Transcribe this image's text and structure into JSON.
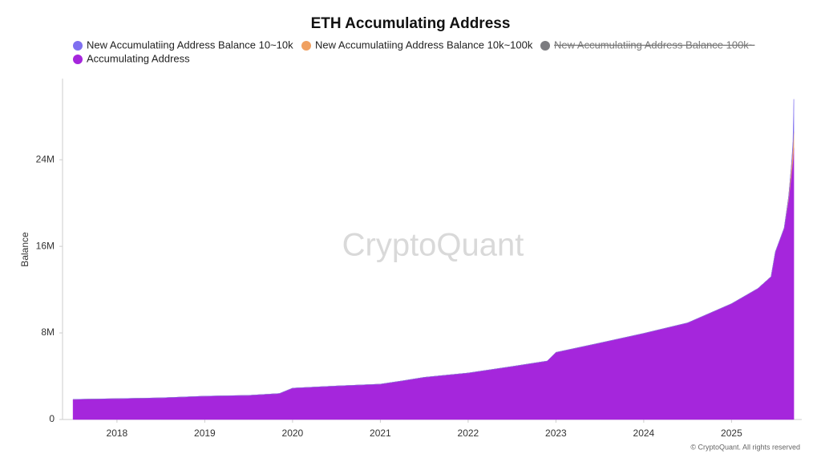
{
  "chart_data": {
    "type": "stacked_area",
    "title": "ETH Accumulating Address",
    "y_label": "Balance",
    "watermark": "CryptoQuant",
    "copyright": "© CryptoQuant. All rights reserved",
    "x": [
      2017.5,
      2018.0,
      2018.5,
      2019.0,
      2019.5,
      2019.85,
      2020.0,
      2020.5,
      2021.0,
      2021.25,
      2021.5,
      2022.0,
      2022.5,
      2022.9,
      2023.0,
      2023.5,
      2024.0,
      2024.5,
      2025.0,
      2025.3,
      2025.45,
      2025.5,
      2025.6,
      2025.65,
      2025.68,
      2025.7,
      2025.71
    ],
    "xlim": [
      2017.38,
      2025.8
    ],
    "xticks": [
      2018,
      2019,
      2020,
      2021,
      2022,
      2023,
      2024,
      2025
    ],
    "ylim": [
      0,
      31500000
    ],
    "yticks": [
      0,
      {
        "value": 8000000,
        "label": "8M"
      },
      {
        "value": 16000000,
        "label": "16M"
      },
      {
        "value": 24000000,
        "label": "24M"
      }
    ],
    "series": [
      {
        "name": "New Accumulatiing Address Balance 10~10k",
        "color": "#7f6ff0",
        "hidden": false,
        "values": [
          0,
          0,
          0,
          0,
          0,
          0,
          0,
          0,
          0,
          0,
          0,
          0,
          0,
          0,
          0,
          0,
          0,
          0,
          0,
          0,
          0,
          0,
          0,
          0,
          0,
          500000,
          3000000
        ]
      },
      {
        "name": "New Accumulatiing Address Balance 10k~100k",
        "color": "#f0a060",
        "hidden": false,
        "values": [
          0,
          0,
          0,
          0,
          0,
          0,
          0,
          0,
          0,
          0,
          0,
          0,
          0,
          0,
          0,
          0,
          0,
          0,
          0,
          0,
          0,
          0,
          0,
          300000,
          800000,
          1200000,
          1500000
        ]
      },
      {
        "name": "New Accumulatiing Address Balance 100k~",
        "color": "#6e6e72",
        "hidden": true,
        "values": [
          0,
          0,
          0,
          0,
          0,
          0,
          0,
          0,
          0,
          0,
          0,
          0,
          0,
          0,
          0,
          0,
          0,
          0,
          0,
          0,
          0,
          0,
          0,
          0,
          0,
          0,
          0
        ]
      },
      {
        "name": "Accumulating Address",
        "color": "#a526dc",
        "hidden": false,
        "values": [
          1860000,
          1930000,
          2000000,
          2160000,
          2230000,
          2400000,
          2900000,
          3100000,
          3270000,
          3570000,
          3900000,
          4300000,
          4900000,
          5400000,
          6200000,
          7070000,
          7960000,
          8930000,
          10700000,
          12100000,
          13200000,
          15500000,
          17700000,
          20300000,
          22500000,
          24000000,
          25100000
        ]
      }
    ]
  }
}
